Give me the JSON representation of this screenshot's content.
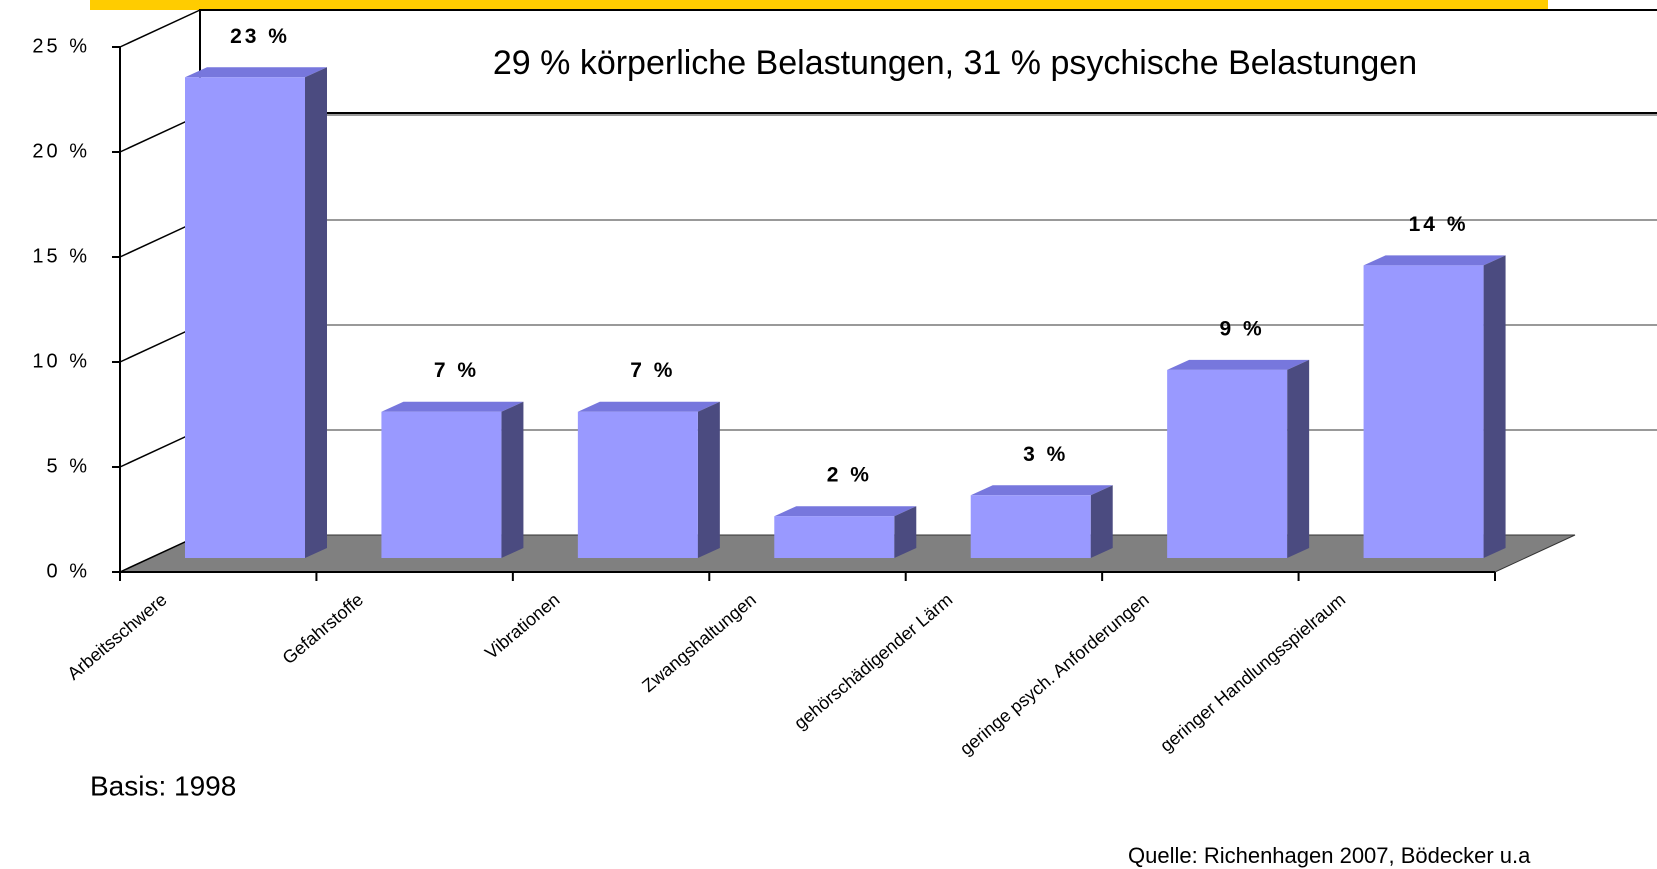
{
  "chart_data": {
    "type": "bar3d",
    "annotation": "29 % körperliche Belastungen, 31 % psychische Belastungen",
    "note": "Basis: 1998",
    "source": "Quelle: Richenhagen 2007, Bödecker u.a",
    "categories": [
      "Arbeitsschwere",
      "Gefahrstoffe",
      "Vibrationen",
      "Zwangshaltungen",
      "gehörschädigender Lärm",
      "geringe psych. Anforderungen",
      "geringer Handlungsspielraum"
    ],
    "values": [
      23,
      7,
      7,
      2,
      3,
      9,
      14
    ],
    "value_labels": [
      "23 %",
      "7 %",
      "7 %",
      "2 %",
      "3 %",
      "9 %",
      "14 %"
    ],
    "color": "#9999ff",
    "ylim": [
      0,
      25
    ],
    "yticks": [
      {
        "value": 0,
        "label": "0 %"
      },
      {
        "value": 5,
        "label": "5 %"
      },
      {
        "value": 10,
        "label": "10 %"
      },
      {
        "value": 15,
        "label": "15 %"
      },
      {
        "value": 20,
        "label": "20 %"
      },
      {
        "value": 25,
        "label": "25 %"
      }
    ],
    "grid": true
  }
}
